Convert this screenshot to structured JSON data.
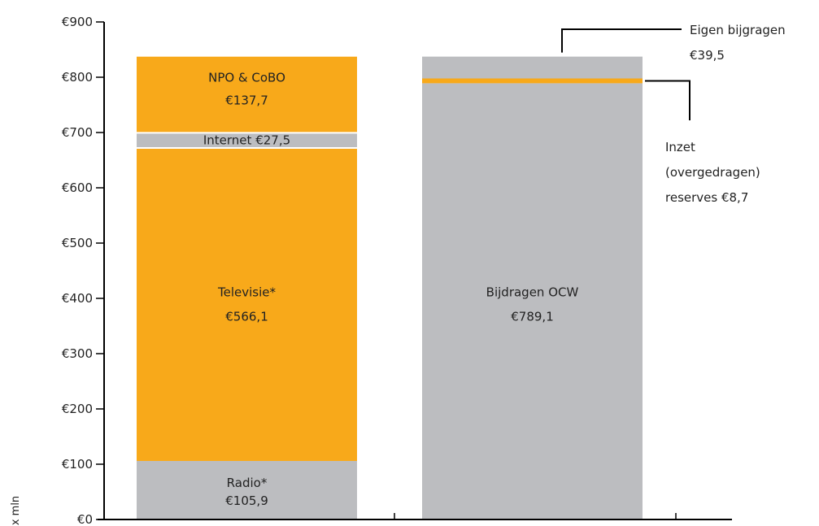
{
  "chart_data": {
    "type": "bar",
    "stacked": true,
    "ylabel": "x mln",
    "ylim": [
      0,
      900
    ],
    "grid": false,
    "yticks": [
      {
        "value": 0,
        "label": "€0"
      },
      {
        "value": 100,
        "label": "€100"
      },
      {
        "value": 200,
        "label": "€200"
      },
      {
        "value": 300,
        "label": "€300"
      },
      {
        "value": 400,
        "label": "€400"
      },
      {
        "value": 500,
        "label": "€500"
      },
      {
        "value": 600,
        "label": "€600"
      },
      {
        "value": 700,
        "label": "€700"
      },
      {
        "value": 800,
        "label": "€800"
      },
      {
        "value": 900,
        "label": "€900"
      }
    ],
    "bars": [
      {
        "segments": [
          {
            "label": "Radio*",
            "value": 105.9,
            "value_label": "€105,9",
            "color": "#bcbdc0"
          },
          {
            "label": "Televisie*",
            "value": 566.1,
            "value_label": "€566,1",
            "color": "#f8a91a"
          },
          {
            "label": "Internet",
            "value": 27.5,
            "value_label": "€27,5",
            "color": "#bcbdc0"
          },
          {
            "label": "NPO & CoBO",
            "value": 137.7,
            "value_label": "€137,7",
            "color": "#f8a91a"
          }
        ]
      },
      {
        "segments": [
          {
            "label": "Bijdragen OCW",
            "value": 789.1,
            "value_label": "€789,1",
            "color": "#bcbdc0"
          },
          {
            "label": "Inzet (overgedragen) reserves",
            "value": 8.7,
            "value_label": "€8,7",
            "color": "#f8a91a"
          },
          {
            "label": "Eigen bijgragen",
            "value": 39.5,
            "value_label": "€39,5",
            "color": "#bcbdc0"
          }
        ]
      }
    ],
    "annotations": {
      "eigen": {
        "lines": [
          "Eigen bijgragen",
          "€39,5"
        ]
      },
      "inzet": {
        "lines": [
          "Inzet",
          "(overgedragen)",
          "reserves €8,7"
        ]
      }
    }
  }
}
